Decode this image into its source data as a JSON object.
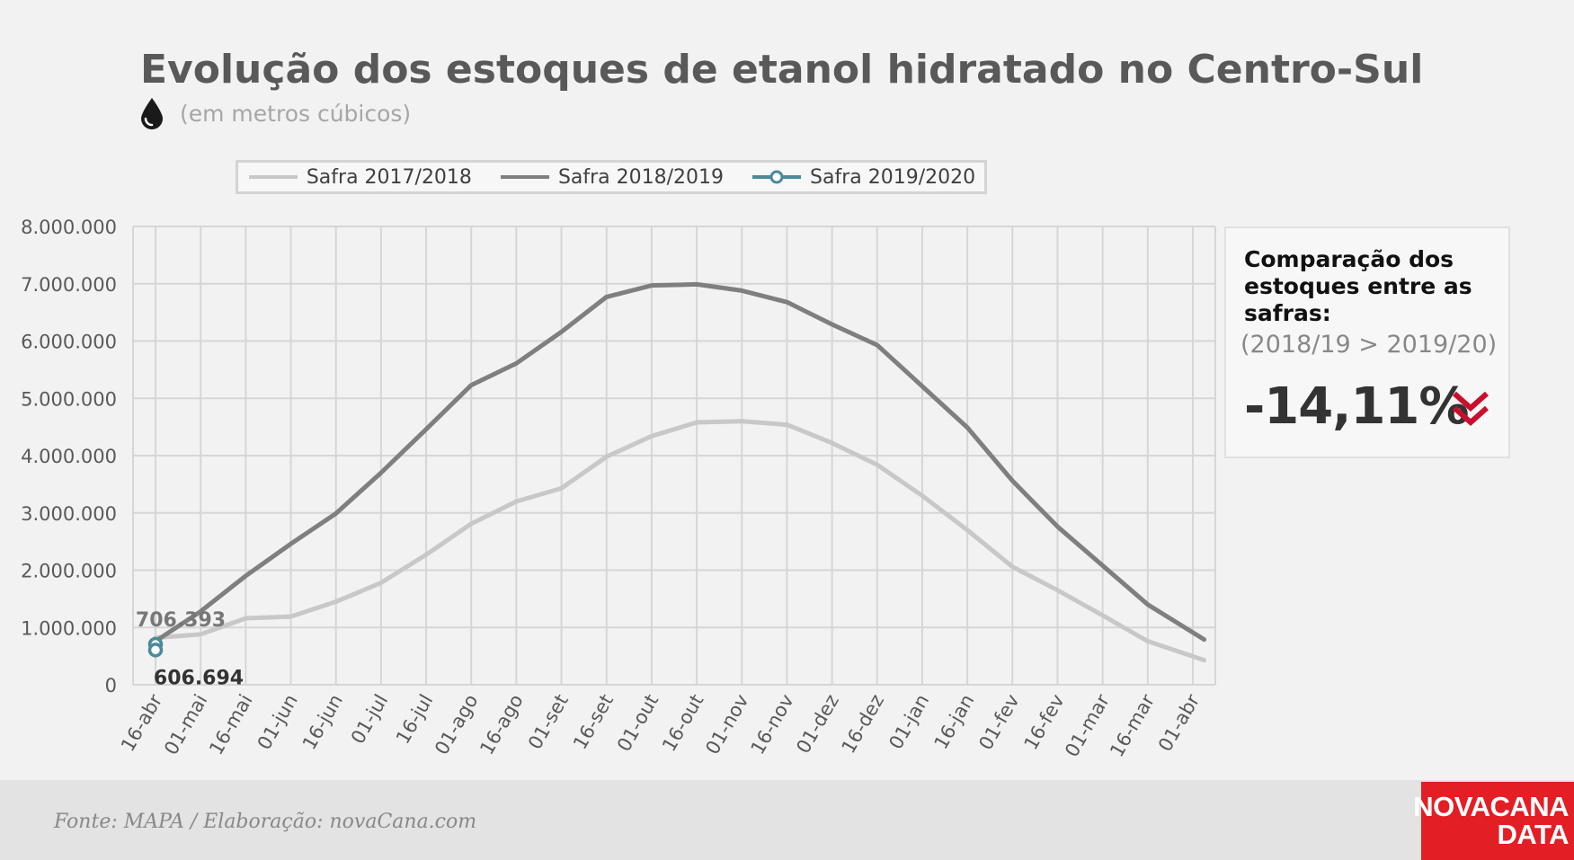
{
  "title": "Evolução dos estoques de etanol hidratado no Centro-Sul",
  "subtitle": "(em metros cúbicos)",
  "icons": {
    "subtitle_icon": "drop-icon",
    "callout_icon": "double-chevron-down-icon"
  },
  "colors": {
    "s2017": "#c8c8c8",
    "s2018": "#7f7f7f",
    "s2019": "#4a8a99",
    "accent": "#c8102e",
    "logo_bg": "#e31e24"
  },
  "callout": {
    "heading": "Comparação dos estoques entre as safras:",
    "sub": "(2018/19 > 2019/20)",
    "value": "-14,11%"
  },
  "footer": {
    "source": "Fonte: MAPA  / Elaboração: novaCana.com"
  },
  "logo": {
    "line1": "NOVACANA",
    "line2": "DATA"
  },
  "chart_data": {
    "type": "line",
    "categories": [
      "16-abr",
      "01-mai",
      "16-mai",
      "01-jun",
      "16-jun",
      "01-jul",
      "16-jul",
      "01-ago",
      "16-ago",
      "01-set",
      "16-set",
      "01-out",
      "16-out",
      "01-nov",
      "16-nov",
      "01-dez",
      "16-dez",
      "01-jan",
      "16-jan",
      "01-fev",
      "16-fev",
      "01-mar",
      "16-mar",
      "01-abr"
    ],
    "yticks": [
      "0",
      "1.000.000",
      "2.000.000",
      "3.000.000",
      "4.000.000",
      "5.000.000",
      "6.000.000",
      "7.000.000",
      "8.000.000"
    ],
    "ylim": [
      0,
      8000000
    ],
    "grid": true,
    "legend_position": "top",
    "series": [
      {
        "name": "Safra 2017/2018",
        "x": [
          0,
          1,
          2,
          3,
          4,
          5,
          6,
          7,
          8,
          9,
          10,
          11,
          12,
          13,
          14,
          15,
          16,
          17,
          18,
          19,
          20,
          21,
          22,
          23.25
        ],
        "values": [
          820000,
          880000,
          1160000,
          1190000,
          1450000,
          1780000,
          2270000,
          2810000,
          3200000,
          3430000,
          3980000,
          4340000,
          4580000,
          4600000,
          4540000,
          4220000,
          3840000,
          3300000,
          2700000,
          2060000,
          1650000,
          1210000,
          760000,
          430000
        ]
      },
      {
        "name": "Safra 2018/2019",
        "x": [
          0,
          1,
          2,
          3,
          4,
          5,
          6,
          7,
          8,
          9,
          10,
          11,
          12,
          13,
          14,
          15,
          16,
          17,
          18,
          19,
          20,
          21,
          22,
          23.25
        ],
        "values": [
          760000,
          1280000,
          1900000,
          2460000,
          2990000,
          3700000,
          4460000,
          5230000,
          5610000,
          6160000,
          6770000,
          6970000,
          6990000,
          6880000,
          6680000,
          6290000,
          5930000,
          5210000,
          4490000,
          3560000,
          2760000,
          2080000,
          1400000,
          790000
        ]
      },
      {
        "name": "Safra 2019/2020",
        "x": [
          0,
          0
        ],
        "values": [
          706393,
          606694
        ],
        "markers": true,
        "data_labels": [
          "706.393",
          "606.694"
        ]
      }
    ]
  }
}
